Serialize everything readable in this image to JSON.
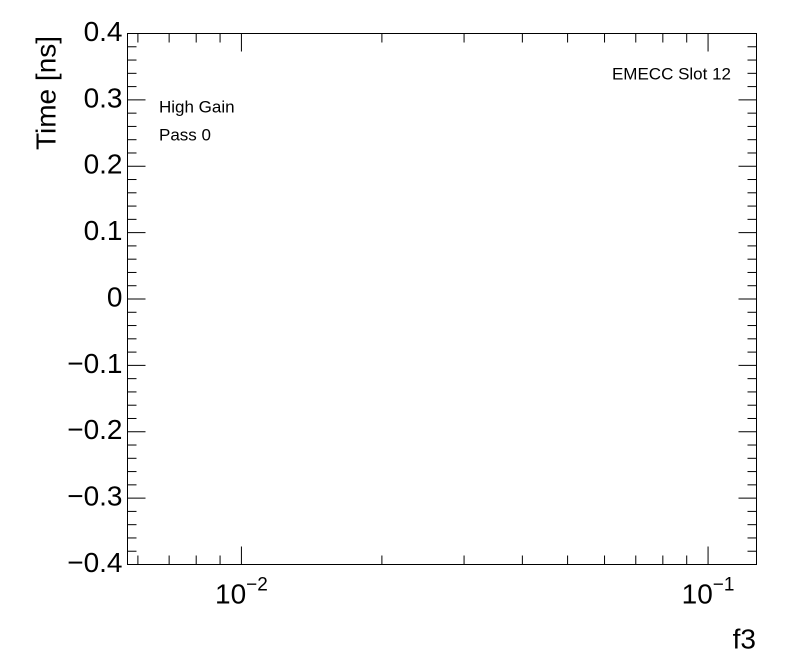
{
  "chart_data": {
    "type": "scatter",
    "annotations": [
      "EMECC Slot 12",
      "High Gain",
      "Pass 0"
    ],
    "x_label": "f3",
    "y_label": "Time [ns]",
    "xscale": "log",
    "xlim": [
      0.0057,
      0.127
    ],
    "xticks": [
      {
        "value": 0.01,
        "label": "10−2"
      },
      {
        "value": 0.1,
        "label": "10−1"
      }
    ],
    "ylim": [
      -0.4,
      0.4
    ],
    "yticks": [
      {
        "value": -0.4,
        "label": "−0.4"
      },
      {
        "value": -0.3,
        "label": "−0.3"
      },
      {
        "value": -0.2,
        "label": "−0.2"
      },
      {
        "value": -0.1,
        "label": "−0.1"
      },
      0,
      0.1,
      0.2,
      0.3,
      0.4
    ],
    "grid": false
  }
}
